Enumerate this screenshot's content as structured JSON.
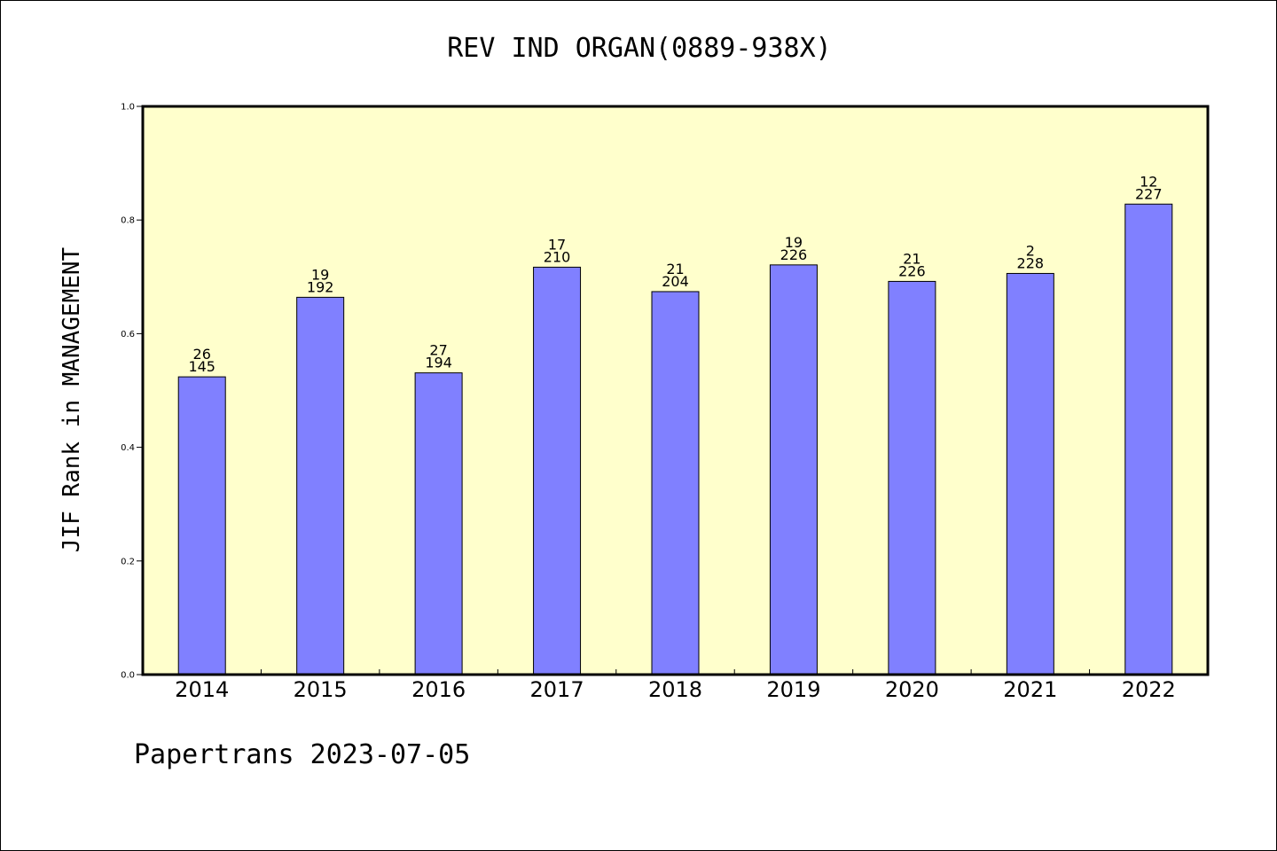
{
  "chart_data": {
    "type": "bar",
    "title": "REV IND ORGAN(0889-938X)",
    "xlabel": "",
    "ylabel": "JIF Rank in MANAGEMENT",
    "ylim": [
      0,
      1.0
    ],
    "yticks": [
      "0.0",
      "0.2",
      "0.4",
      "0.6",
      "0.8",
      "1.0"
    ],
    "categories": [
      "2014",
      "2015",
      "2016",
      "2017",
      "2018",
      "2019",
      "2020",
      "2021",
      "2022"
    ],
    "values": [
      0.524,
      0.664,
      0.531,
      0.717,
      0.674,
      0.721,
      0.692,
      0.706,
      0.828
    ],
    "rank": [
      "26",
      "19",
      "27",
      "17",
      "21",
      "19",
      "21",
      "2",
      "12"
    ],
    "total": [
      "145",
      "192",
      "194",
      "210",
      "204",
      "226",
      "226",
      "228",
      "227"
    ],
    "grid": false,
    "legend": "none",
    "colors": {
      "plot_background": "#ffffcc",
      "bar_fill": "#8080ff",
      "bar_stroke": "#000000"
    }
  },
  "footer": "Papertrans 2023-07-05"
}
